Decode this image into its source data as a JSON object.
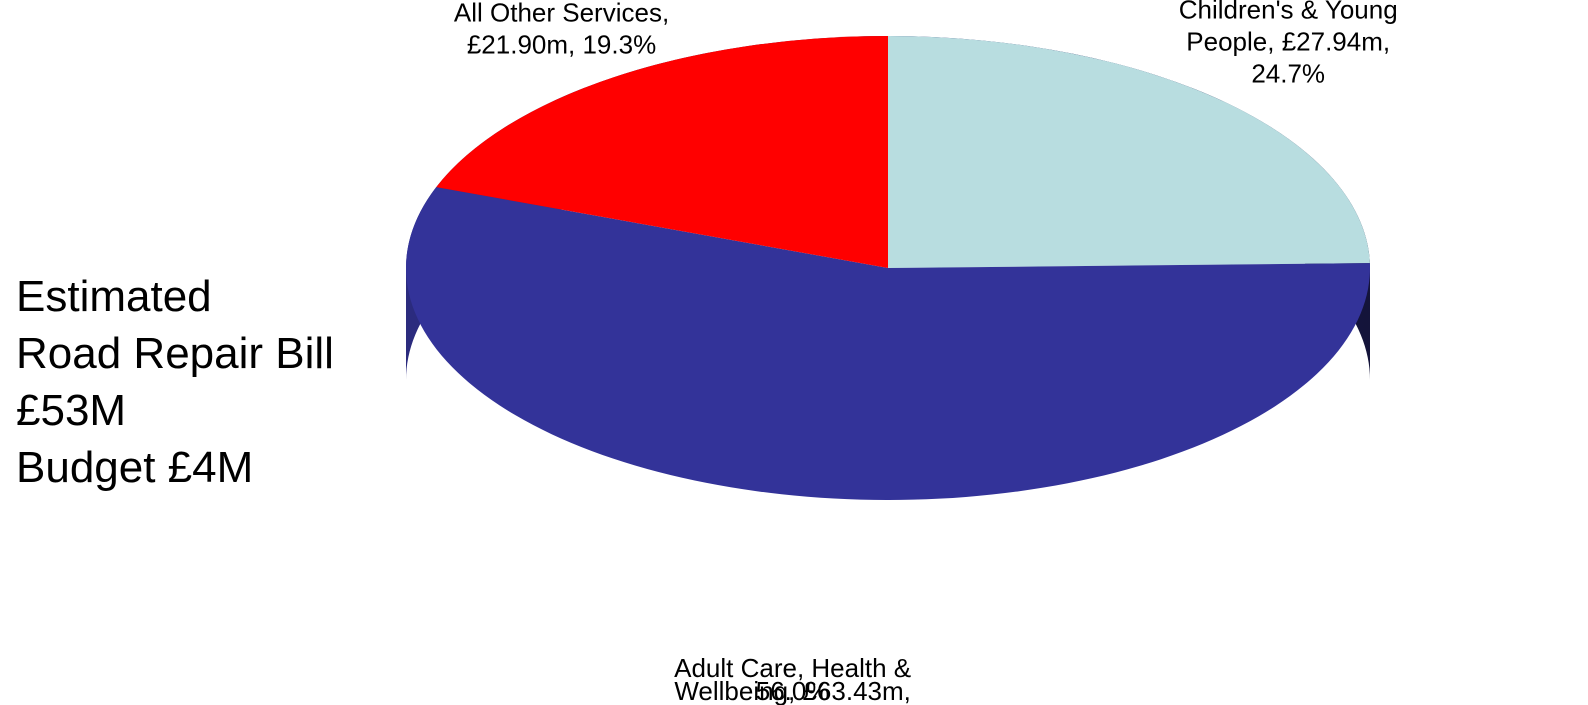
{
  "side_note": {
    "lines": [
      "Estimated",
      "Road Repair Bill",
      "£53M",
      "Budget £4M"
    ]
  },
  "chart_data": {
    "type": "pie",
    "style": "3d-tilted",
    "slices": [
      {
        "category": "Children's & Young People",
        "value": 27.94,
        "value_text": "£27.94m",
        "percent": 24.7,
        "percent_text": "24.7%",
        "color": "#B8DDE0",
        "label_lines": [
          "Children's & Young",
          "People, £27.94m,",
          "24.7%"
        ]
      },
      {
        "category": "Adult Care, Health & Wellbeing",
        "value": 63.43,
        "value_text": "£63.43m",
        "percent": 56.0,
        "percent_text": "56.0%",
        "color": "#333399",
        "label_lines": [
          "Adult Care, Health &",
          "Wellbeing, £63.43m,",
          "56.0%"
        ]
      },
      {
        "category": "All Other Services",
        "value": 21.9,
        "value_text": "£21.90m",
        "percent": 19.3,
        "percent_text": "19.3%",
        "color": "#FF0000",
        "label_lines": [
          "All Other Services,",
          "£21.90m, 19.3%"
        ]
      }
    ],
    "legend": "none",
    "grid": false
  }
}
